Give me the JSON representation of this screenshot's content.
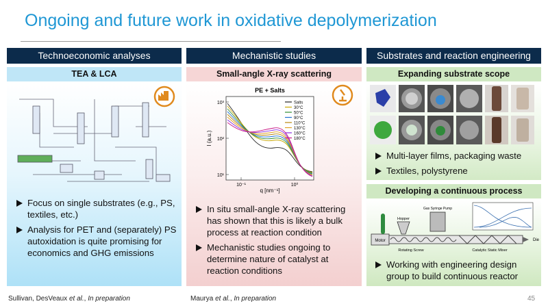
{
  "title": "Ongoing and future work in oxidative depolymerization",
  "columns": [
    {
      "header": "Technoeconomic analyses",
      "subheader": "TEA & LCA",
      "bullets": [
        "Focus on single substrates (e.g., PS, textiles, etc.)",
        "Analysis for PET and (separately) PS autoxidation is quite promising for economics and GHG emissions"
      ]
    },
    {
      "header": "Mechanistic studies",
      "subheader": "Small-angle X-ray scattering",
      "figure": {
        "title": "PE + Salts",
        "y_label": "I (a.u.)",
        "x_label": "q [nm⁻¹]",
        "yticks": [
          "10³",
          "10²",
          "10¹"
        ],
        "xticks": [
          "10⁻¹",
          "10⁰"
        ],
        "legend": [
          {
            "name": "Salts",
            "color": "#222222"
          },
          {
            "name": "30°C",
            "color": "#c9a800"
          },
          {
            "name": "50°C",
            "color": "#2e8b2e"
          },
          {
            "name": "90°C",
            "color": "#1e6fd0"
          },
          {
            "name": "110°C",
            "color": "#b8860b"
          },
          {
            "name": "130°C",
            "color": "#e0a020"
          },
          {
            "name": "160°C",
            "color": "#8a2be2"
          },
          {
            "name": "180°C",
            "color": "#c71585"
          }
        ]
      },
      "bullets": [
        "In situ small-angle X-ray scattering has shown that this is likely a bulk process at reaction condition",
        "Mechanistic studies ongoing to determine nature of catalyst at reaction conditions"
      ]
    },
    {
      "header": "Substrates and reaction engineering",
      "subheader": "Expanding substrate scope",
      "bullets": [
        "Multi-layer films, packaging waste",
        "Textiles, polystyrene"
      ],
      "subheader2": "Developing a continuous process",
      "figure": {
        "labels": [
          "Motor",
          "Hopper",
          "Gas Syringe Pump",
          "Rotating Screw",
          "Catalytic Static Mixer",
          "Die"
        ]
      },
      "bullets2": [
        "Working with engineering design group to build continuous reactor"
      ]
    }
  ],
  "footer": {
    "left": [
      "Sullivan, DesVeaux ",
      "et al.",
      ", ",
      "In preparation"
    ],
    "middle": [
      "Maurya ",
      "et al.",
      ", ",
      "In preparation"
    ],
    "page": "45"
  }
}
